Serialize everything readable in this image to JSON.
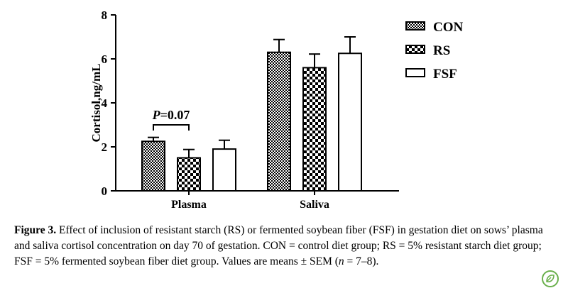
{
  "chart_data": {
    "type": "bar",
    "categories": [
      "Plasma",
      "Saliva"
    ],
    "series": [
      {
        "name": "CON",
        "pattern": "checker-fine",
        "values": [
          2.25,
          6.3
        ],
        "errors": [
          0.18,
          0.58
        ]
      },
      {
        "name": "RS",
        "pattern": "checker-coarse",
        "values": [
          1.5,
          5.6
        ],
        "errors": [
          0.38,
          0.62
        ]
      },
      {
        "name": "FSF",
        "pattern": "open",
        "values": [
          1.9,
          6.25
        ],
        "errors": [
          0.4,
          0.75
        ]
      }
    ],
    "ylabel": "Cortisol,ng/mL",
    "ylim": [
      0,
      8
    ],
    "yticks": [
      0,
      2,
      4,
      6,
      8
    ],
    "legend_position": "top-right",
    "annotation": {
      "label_prefix": "P",
      "label_value": "=0.07",
      "category": "Plasma",
      "between": [
        "CON",
        "RS"
      ]
    }
  },
  "caption": {
    "label": "Figure 3.",
    "text": "Effect of inclusion of resistant starch (RS) or fermented soybean fiber (FSF) in gestation diet on sows’ plasma and saliva cortisol concentration on day 70 of gestation. CON = control diet group; RS = 5% resistant starch diet group; FSF = 5% fermented soybean fiber diet group. Values are means ± SEM (",
    "n_symbol": "n",
    "n_value": " = 7–8)."
  }
}
